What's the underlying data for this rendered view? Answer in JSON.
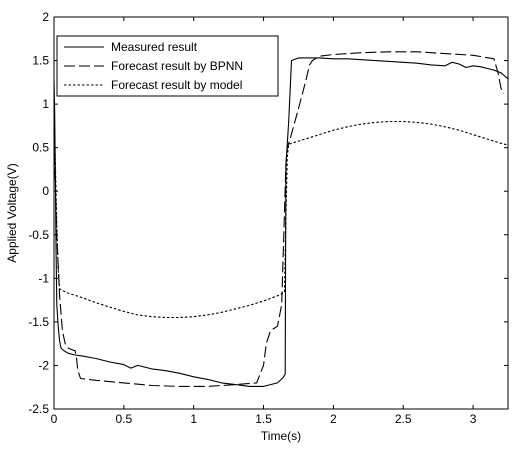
{
  "chart_data": {
    "type": "line",
    "title": "",
    "xlabel": "Time(s)",
    "ylabel": "Applied Voltage(V)",
    "xlim": [
      0,
      3.25
    ],
    "ylim": [
      -2.5,
      2
    ],
    "xticks": [
      0,
      0.5,
      1,
      1.5,
      2,
      2.5,
      3
    ],
    "xtick_labels": [
      "0",
      "0.5",
      "1",
      "1.5",
      "2",
      "2.5",
      "3"
    ],
    "yticks": [
      -2.5,
      -2,
      -1.5,
      -1,
      -0.5,
      0,
      0.5,
      1,
      1.5,
      2
    ],
    "ytick_labels": [
      "-2.5",
      "-2",
      "-1.5",
      "-1",
      "-0.5",
      "0",
      "0.5",
      "1",
      "1.5",
      "2"
    ],
    "grid": false,
    "legend_position": "top-left",
    "series": [
      {
        "name": "Measured result",
        "style": "solid",
        "color": "#000000",
        "x": [
          0,
          0.005,
          0.01,
          0.015,
          0.02,
          0.03,
          0.04,
          0.05,
          0.07,
          0.1,
          0.15,
          0.2,
          0.3,
          0.4,
          0.5,
          0.55,
          0.6,
          0.7,
          0.8,
          0.9,
          1.0,
          1.1,
          1.2,
          1.3,
          1.4,
          1.5,
          1.6,
          1.64,
          1.655,
          1.66,
          1.67,
          1.68,
          1.7,
          1.75,
          1.8,
          1.9,
          2.0,
          2.1,
          2.2,
          2.3,
          2.4,
          2.5,
          2.6,
          2.7,
          2.8,
          2.85,
          2.9,
          2.95,
          3.0,
          3.05,
          3.1,
          3.15,
          3.2,
          3.25
        ],
        "y": [
          1.27,
          0.9,
          0.1,
          -0.7,
          -1.3,
          -1.55,
          -1.72,
          -1.8,
          -1.83,
          -1.86,
          -1.88,
          -1.89,
          -1.92,
          -1.96,
          -1.99,
          -2.03,
          -2.0,
          -2.04,
          -2.06,
          -2.09,
          -2.13,
          -2.16,
          -2.2,
          -2.22,
          -2.24,
          -2.24,
          -2.2,
          -2.14,
          -2.1,
          0.3,
          0.55,
          0.8,
          1.5,
          1.53,
          1.53,
          1.53,
          1.52,
          1.52,
          1.51,
          1.5,
          1.49,
          1.48,
          1.47,
          1.45,
          1.44,
          1.48,
          1.46,
          1.42,
          1.44,
          1.43,
          1.41,
          1.39,
          1.36,
          1.29
        ]
      },
      {
        "name": "Forecast result by BPNN",
        "style": "dashed",
        "color": "#000000",
        "x": [
          0,
          0.01,
          0.02,
          0.04,
          0.06,
          0.08,
          0.1,
          0.13,
          0.15,
          0.16,
          0.17,
          0.19,
          0.3,
          0.5,
          0.7,
          0.9,
          1.1,
          1.3,
          1.45,
          1.5,
          1.52,
          1.55,
          1.6,
          1.63,
          1.66,
          1.67,
          1.69,
          1.75,
          1.8,
          1.83,
          1.85,
          1.87,
          1.9,
          2.0,
          2.2,
          2.4,
          2.6,
          2.8,
          3.0,
          3.15,
          3.18,
          3.2,
          3.22
        ],
        "y": [
          0.6,
          0.1,
          -0.5,
          -1.2,
          -1.6,
          -1.75,
          -1.8,
          -1.82,
          -1.83,
          -1.9,
          -2.05,
          -2.15,
          -2.17,
          -2.2,
          -2.23,
          -2.24,
          -2.24,
          -2.22,
          -2.2,
          -2.0,
          -1.75,
          -1.6,
          -1.55,
          -1.3,
          0.3,
          0.5,
          0.6,
          0.95,
          1.25,
          1.45,
          1.5,
          1.52,
          1.55,
          1.57,
          1.59,
          1.6,
          1.6,
          1.58,
          1.56,
          1.52,
          1.35,
          1.18,
          1.12
        ]
      },
      {
        "name": "Forecast result by model",
        "style": "dotted",
        "color": "#000000",
        "x": [
          0,
          0.01,
          0.02,
          0.03,
          0.04,
          0.06,
          0.1,
          0.2,
          0.3,
          0.4,
          0.5,
          0.6,
          0.7,
          0.8,
          0.9,
          1.0,
          1.1,
          1.2,
          1.3,
          1.4,
          1.5,
          1.6,
          1.65,
          1.66,
          1.67,
          1.68,
          1.7,
          1.8,
          1.9,
          2.0,
          2.1,
          2.2,
          2.3,
          2.4,
          2.5,
          2.6,
          2.7,
          2.8,
          2.9,
          3.0,
          3.1,
          3.2,
          3.25
        ],
        "y": [
          0.9,
          0.3,
          -0.4,
          -0.9,
          -1.12,
          -1.14,
          -1.17,
          -1.22,
          -1.28,
          -1.33,
          -1.38,
          -1.42,
          -1.44,
          -1.45,
          -1.45,
          -1.44,
          -1.42,
          -1.39,
          -1.35,
          -1.31,
          -1.26,
          -1.2,
          -1.16,
          -0.3,
          0.4,
          0.54,
          0.55,
          0.6,
          0.65,
          0.7,
          0.74,
          0.77,
          0.79,
          0.8,
          0.8,
          0.79,
          0.77,
          0.74,
          0.7,
          0.65,
          0.6,
          0.55,
          0.53
        ]
      }
    ]
  }
}
